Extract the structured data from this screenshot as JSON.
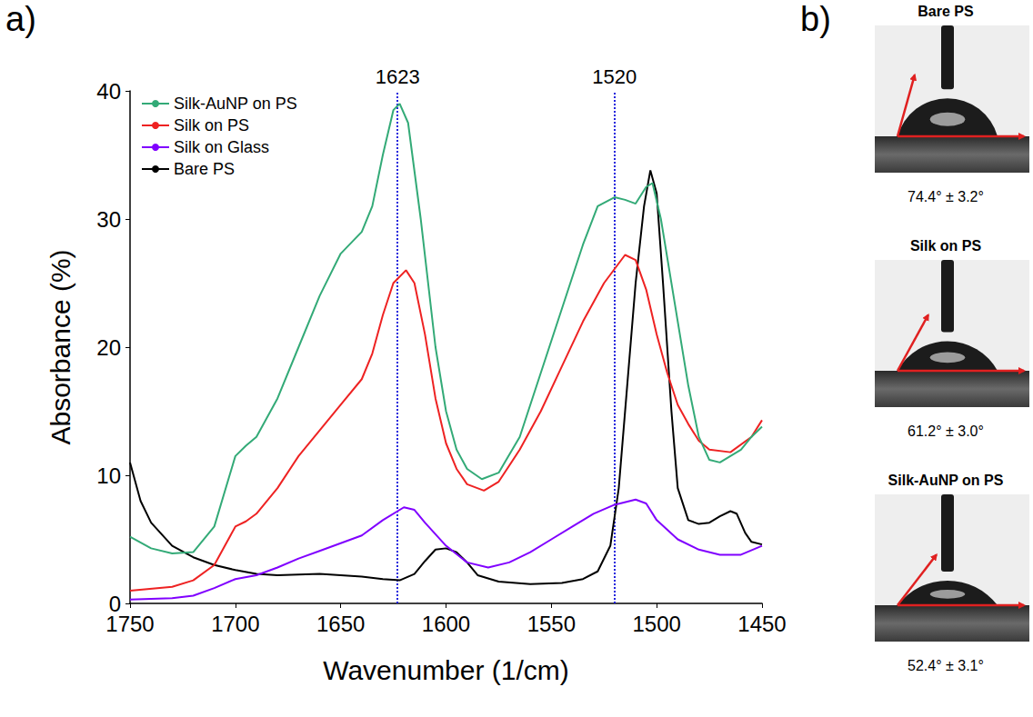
{
  "chart_data": {
    "type": "line",
    "panel_label": "a)",
    "x_label": "Wavenumber (1/cm)",
    "y_label": "Absorbance (%)",
    "xlim": [
      1750,
      1450
    ],
    "xticks": [
      1750,
      1700,
      1650,
      1600,
      1550,
      1500,
      1450
    ],
    "ylim": [
      0,
      40
    ],
    "yticks": [
      0,
      10,
      20,
      30,
      40
    ],
    "grid": false,
    "legend": "upper left",
    "annotations": [
      {
        "x": 1623,
        "label": "1623"
      },
      {
        "x": 1520,
        "label": "1520"
      }
    ],
    "series": [
      {
        "name": "Silk-AuNP on PS",
        "color": "#33aa77",
        "x": [
          1750,
          1740,
          1730,
          1720,
          1710,
          1700,
          1695,
          1690,
          1680,
          1670,
          1660,
          1650,
          1640,
          1635,
          1630,
          1625,
          1622,
          1618,
          1612,
          1605,
          1600,
          1595,
          1590,
          1583,
          1575,
          1565,
          1555,
          1545,
          1535,
          1528,
          1520,
          1515,
          1510,
          1505,
          1502,
          1498,
          1490,
          1485,
          1480,
          1475,
          1470,
          1465,
          1460,
          1455,
          1450
        ],
        "values": [
          5.2,
          4.3,
          3.9,
          4.0,
          6.0,
          11.5,
          12.3,
          13.0,
          16.0,
          20.0,
          24.0,
          27.3,
          29.0,
          31.0,
          35.0,
          38.5,
          39.0,
          37.5,
          30.0,
          20.0,
          15.0,
          12.0,
          10.5,
          9.7,
          10.2,
          13.0,
          18.0,
          23.0,
          28.0,
          31.0,
          31.7,
          31.5,
          31.2,
          32.5,
          32.8,
          30.0,
          22.0,
          17.0,
          13.0,
          11.2,
          11.0,
          11.5,
          12.0,
          13.0,
          13.8
        ]
      },
      {
        "name": "Silk on PS",
        "color": "#ee2222",
        "x": [
          1750,
          1730,
          1720,
          1710,
          1700,
          1695,
          1690,
          1680,
          1670,
          1660,
          1650,
          1640,
          1635,
          1630,
          1625,
          1619,
          1615,
          1610,
          1605,
          1600,
          1595,
          1590,
          1582,
          1575,
          1565,
          1555,
          1545,
          1535,
          1525,
          1515,
          1510,
          1505,
          1500,
          1495,
          1490,
          1485,
          1480,
          1475,
          1465,
          1455,
          1450
        ],
        "values": [
          1.0,
          1.3,
          1.8,
          3.0,
          6.0,
          6.4,
          7.0,
          9.0,
          11.5,
          13.5,
          15.5,
          17.5,
          19.5,
          22.5,
          25.0,
          26.0,
          25.0,
          21.0,
          16.0,
          12.5,
          10.5,
          9.3,
          8.8,
          9.5,
          12.0,
          15.0,
          18.5,
          22.0,
          25.0,
          27.2,
          26.8,
          24.5,
          21.0,
          18.0,
          15.5,
          14.0,
          12.7,
          12.0,
          11.8,
          13.0,
          14.3
        ]
      },
      {
        "name": "Silk on Glass",
        "color": "#8000ff",
        "x": [
          1750,
          1730,
          1720,
          1710,
          1700,
          1690,
          1680,
          1670,
          1660,
          1650,
          1640,
          1630,
          1620,
          1615,
          1610,
          1600,
          1590,
          1580,
          1570,
          1560,
          1550,
          1540,
          1530,
          1520,
          1510,
          1505,
          1500,
          1490,
          1480,
          1470,
          1460,
          1450
        ],
        "values": [
          0.3,
          0.4,
          0.6,
          1.2,
          1.9,
          2.2,
          2.8,
          3.5,
          4.1,
          4.7,
          5.3,
          6.5,
          7.5,
          7.3,
          6.3,
          4.5,
          3.2,
          2.8,
          3.2,
          4.0,
          5.0,
          6.0,
          7.0,
          7.7,
          8.1,
          7.8,
          6.5,
          5.0,
          4.2,
          3.8,
          3.8,
          4.5
        ]
      },
      {
        "name": "Bare PS",
        "color": "#000000",
        "x": [
          1750,
          1745,
          1740,
          1730,
          1720,
          1710,
          1700,
          1690,
          1680,
          1660,
          1640,
          1630,
          1622,
          1615,
          1610,
          1605,
          1600,
          1595,
          1590,
          1585,
          1575,
          1560,
          1545,
          1535,
          1528,
          1522,
          1518,
          1514,
          1510,
          1506,
          1503,
          1500,
          1497,
          1493,
          1490,
          1485,
          1480,
          1475,
          1470,
          1465,
          1462,
          1458,
          1455,
          1450
        ],
        "values": [
          11.0,
          8.0,
          6.3,
          4.5,
          3.6,
          3.0,
          2.6,
          2.3,
          2.2,
          2.3,
          2.1,
          1.9,
          1.8,
          2.3,
          3.3,
          4.2,
          4.3,
          4.0,
          3.2,
          2.2,
          1.7,
          1.5,
          1.6,
          1.9,
          2.5,
          4.5,
          9.0,
          17.0,
          25.0,
          31.0,
          33.8,
          32.0,
          25.0,
          15.0,
          9.0,
          6.5,
          6.2,
          6.3,
          6.8,
          7.2,
          7.0,
          5.5,
          4.8,
          4.6
        ]
      }
    ]
  },
  "contact_angle_panel": {
    "panel_label": "b)",
    "drops": [
      {
        "title": "Bare PS",
        "angle": 74.4,
        "label": "74.4° ± 3.2°"
      },
      {
        "title": "Silk on PS",
        "angle": 61.2,
        "label": "61.2° ± 3.0°"
      },
      {
        "title": "Silk-AuNP on PS",
        "angle": 52.4,
        "label": "52.4° ± 3.1°"
      }
    ]
  }
}
